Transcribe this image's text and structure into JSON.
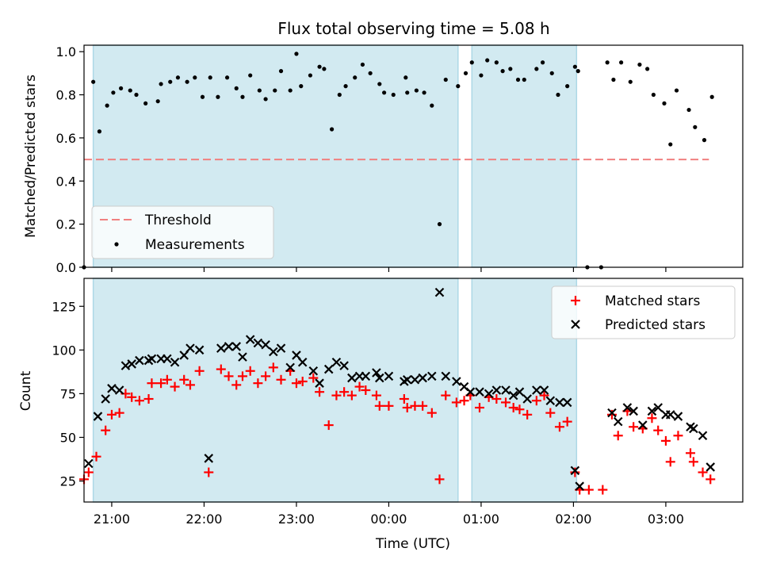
{
  "figure": {
    "title": "Flux total observing time = 5.08 h",
    "xlabel": "Time (UTC)"
  },
  "colors": {
    "shade": "#add8e6",
    "threshold": "#f08080",
    "measurement": "#000000",
    "matched": "#ff0000",
    "predicted": "#000000"
  },
  "chart_data": [
    {
      "type": "scatter",
      "panel": "top",
      "ylabel": "Matched/Predicted stars",
      "xlim": [
        "20:42",
        "03:50"
      ],
      "ylim": [
        0.0,
        1.03
      ],
      "yticks": [
        "0.0",
        "0.2",
        "0.4",
        "0.6",
        "0.8",
        "1.0"
      ],
      "xtick_labels": [
        "21:00",
        "22:00",
        "23:00",
        "00:00",
        "01:00",
        "02:00",
        "03:00"
      ],
      "shaded_intervals": [
        [
          "20:48",
          "00:45"
        ],
        [
          "00:54",
          "02:02"
        ]
      ],
      "legend": {
        "placement": "lower left",
        "entries": [
          "Threshold",
          "Measurements"
        ]
      },
      "threshold": {
        "name": "Threshold",
        "value": 0.5,
        "x_range": [
          "20:42",
          "03:28"
        ],
        "style": "dashed"
      },
      "series": [
        {
          "name": "Measurements",
          "points": [
            [
              "20:42",
              0.0
            ],
            [
              "20:48",
              0.86
            ],
            [
              "20:52",
              0.63
            ],
            [
              "20:57",
              0.75
            ],
            [
              "21:01",
              0.81
            ],
            [
              "21:06",
              0.83
            ],
            [
              "21:12",
              0.82
            ],
            [
              "21:16",
              0.8
            ],
            [
              "21:22",
              0.76
            ],
            [
              "21:30",
              0.77
            ],
            [
              "21:32",
              0.85
            ],
            [
              "21:38",
              0.86
            ],
            [
              "21:43",
              0.88
            ],
            [
              "21:49",
              0.86
            ],
            [
              "21:54",
              0.88
            ],
            [
              "21:59",
              0.79
            ],
            [
              "22:04",
              0.88
            ],
            [
              "22:09",
              0.79
            ],
            [
              "22:15",
              0.88
            ],
            [
              "22:21",
              0.83
            ],
            [
              "22:25",
              0.79
            ],
            [
              "22:30",
              0.89
            ],
            [
              "22:36",
              0.82
            ],
            [
              "22:40",
              0.78
            ],
            [
              "22:46",
              0.82
            ],
            [
              "22:50",
              0.91
            ],
            [
              "22:56",
              0.82
            ],
            [
              "23:00",
              0.99
            ],
            [
              "23:03",
              0.84
            ],
            [
              "23:09",
              0.89
            ],
            [
              "23:15",
              0.93
            ],
            [
              "23:18",
              0.92
            ],
            [
              "23:23",
              0.64
            ],
            [
              "23:28",
              0.8
            ],
            [
              "23:32",
              0.84
            ],
            [
              "23:38",
              0.88
            ],
            [
              "23:43",
              0.94
            ],
            [
              "23:48",
              0.9
            ],
            [
              "23:54",
              0.85
            ],
            [
              "23:57",
              0.81
            ],
            [
              "00:03",
              0.8
            ],
            [
              "00:11",
              0.88
            ],
            [
              "00:12",
              0.81
            ],
            [
              "00:18",
              0.82
            ],
            [
              "00:23",
              0.81
            ],
            [
              "00:28",
              0.75
            ],
            [
              "00:33",
              0.2
            ],
            [
              "00:37",
              0.87
            ],
            [
              "00:45",
              0.84
            ],
            [
              "00:50",
              0.9
            ],
            [
              "00:54",
              0.95
            ],
            [
              "01:00",
              0.89
            ],
            [
              "01:04",
              0.96
            ],
            [
              "01:10",
              0.95
            ],
            [
              "01:14",
              0.91
            ],
            [
              "01:19",
              0.92
            ],
            [
              "01:24",
              0.87
            ],
            [
              "01:28",
              0.87
            ],
            [
              "01:36",
              0.92
            ],
            [
              "01:40",
              0.95
            ],
            [
              "01:46",
              0.9
            ],
            [
              "01:50",
              0.8
            ],
            [
              "01:56",
              0.84
            ],
            [
              "02:01",
              0.93
            ],
            [
              "02:03",
              0.91
            ],
            [
              "02:09",
              0.0
            ],
            [
              "02:18",
              0.0
            ],
            [
              "02:22",
              0.95
            ],
            [
              "02:26",
              0.87
            ],
            [
              "02:31",
              0.95
            ],
            [
              "02:37",
              0.86
            ],
            [
              "02:43",
              0.94
            ],
            [
              "02:48",
              0.92
            ],
            [
              "02:52",
              0.8
            ],
            [
              "02:59",
              0.76
            ],
            [
              "03:03",
              0.57
            ],
            [
              "03:07",
              0.82
            ],
            [
              "03:15",
              0.73
            ],
            [
              "03:19",
              0.65
            ],
            [
              "03:25",
              0.59
            ],
            [
              "03:30",
              0.79
            ]
          ]
        }
      ]
    },
    {
      "type": "scatter",
      "panel": "bottom",
      "ylabel": "Count",
      "xlabel": "Time (UTC)",
      "xlim": [
        "20:42",
        "03:50"
      ],
      "ylim": [
        13,
        141
      ],
      "yticks": [
        "25",
        "50",
        "75",
        "100",
        "125"
      ],
      "xtick_labels": [
        "21:00",
        "22:00",
        "23:00",
        "00:00",
        "01:00",
        "02:00",
        "03:00"
      ],
      "shaded_intervals": [
        [
          "20:48",
          "00:45"
        ],
        [
          "00:54",
          "02:02"
        ]
      ],
      "legend": {
        "placement": "upper right",
        "entries": [
          "Matched stars",
          "Predicted stars"
        ]
      },
      "series": [
        {
          "name": "Matched stars",
          "marker": "plus",
          "points": [
            [
              "20:42",
              26
            ],
            [
              "20:45",
              30
            ],
            [
              "20:50",
              39
            ],
            [
              "20:56",
              54
            ],
            [
              "21:00",
              63
            ],
            [
              "21:05",
              64
            ],
            [
              "21:09",
              75
            ],
            [
              "21:13",
              73
            ],
            [
              "21:18",
              71
            ],
            [
              "21:24",
              72
            ],
            [
              "21:26",
              81
            ],
            [
              "21:32",
              81
            ],
            [
              "21:36",
              83
            ],
            [
              "21:41",
              79
            ],
            [
              "21:47",
              83
            ],
            [
              "21:51",
              80
            ],
            [
              "21:57",
              88
            ],
            [
              "22:03",
              30
            ],
            [
              "22:11",
              89
            ],
            [
              "22:16",
              85
            ],
            [
              "22:21",
              80
            ],
            [
              "22:25",
              85
            ],
            [
              "22:30",
              88
            ],
            [
              "22:35",
              81
            ],
            [
              "22:40",
              85
            ],
            [
              "22:45",
              90
            ],
            [
              "22:50",
              83
            ],
            [
              "22:56",
              88
            ],
            [
              "23:00",
              81
            ],
            [
              "23:04",
              82
            ],
            [
              "23:11",
              84
            ],
            [
              "23:15",
              76
            ],
            [
              "23:21",
              57
            ],
            [
              "23:26",
              74
            ],
            [
              "23:31",
              76
            ],
            [
              "23:36",
              74
            ],
            [
              "23:41",
              79
            ],
            [
              "23:45",
              77
            ],
            [
              "23:52",
              74
            ],
            [
              "23:54",
              68
            ],
            [
              "24:00",
              68
            ],
            [
              "24:10",
              72
            ],
            [
              "24:12",
              67
            ],
            [
              "24:17",
              68
            ],
            [
              "24:22",
              68
            ],
            [
              "24:28",
              64
            ],
            [
              "24:33",
              26
            ],
            [
              "24:37",
              74
            ],
            [
              "24:44",
              70
            ],
            [
              "24:49",
              71
            ],
            [
              "24:53",
              74
            ],
            [
              "24:59",
              67
            ],
            [
              "25:05",
              73
            ],
            [
              "25:10",
              72
            ],
            [
              "25:16",
              70
            ],
            [
              "25:21",
              67
            ],
            [
              "25:25",
              66
            ],
            [
              "25:30",
              63
            ],
            [
              "25:36",
              71
            ],
            [
              "25:41",
              74
            ],
            [
              "25:45",
              64
            ],
            [
              "25:51",
              56
            ],
            [
              "25:56",
              59
            ],
            [
              "26:01",
              30
            ],
            [
              "26:04",
              20
            ],
            [
              "26:10",
              20
            ],
            [
              "26:19",
              20
            ],
            [
              "26:25",
              63
            ],
            [
              "26:29",
              51
            ],
            [
              "26:35",
              65
            ],
            [
              "26:39",
              56
            ],
            [
              "26:45",
              55
            ],
            [
              "26:51",
              61
            ],
            [
              "26:55",
              54
            ],
            [
              "27:00",
              48
            ],
            [
              "27:03",
              36
            ],
            [
              "27:08",
              51
            ],
            [
              "27:16",
              41
            ],
            [
              "27:18",
              36
            ],
            [
              "27:24",
              30
            ],
            [
              "27:29",
              26
            ]
          ]
        },
        {
          "name": "Predicted stars",
          "marker": "x",
          "points": [
            [
              "20:45",
              35
            ],
            [
              "20:51",
              62
            ],
            [
              "20:56",
              72
            ],
            [
              "21:00",
              78
            ],
            [
              "21:05",
              77
            ],
            [
              "21:09",
              91
            ],
            [
              "21:13",
              92
            ],
            [
              "21:18",
              94
            ],
            [
              "21:24",
              94
            ],
            [
              "21:26",
              95
            ],
            [
              "21:32",
              95
            ],
            [
              "21:36",
              95
            ],
            [
              "21:41",
              93
            ],
            [
              "21:47",
              97
            ],
            [
              "21:51",
              101
            ],
            [
              "21:57",
              100
            ],
            [
              "22:03",
              38
            ],
            [
              "22:11",
              101
            ],
            [
              "22:16",
              102
            ],
            [
              "22:21",
              102
            ],
            [
              "22:25",
              96
            ],
            [
              "22:30",
              106
            ],
            [
              "22:35",
              104
            ],
            [
              "22:40",
              103
            ],
            [
              "22:45",
              99
            ],
            [
              "22:50",
              101
            ],
            [
              "22:56",
              90
            ],
            [
              "23:00",
              97
            ],
            [
              "23:04",
              93
            ],
            [
              "23:11",
              88
            ],
            [
              "23:15",
              81
            ],
            [
              "23:21",
              89
            ],
            [
              "23:26",
              93
            ],
            [
              "23:31",
              91
            ],
            [
              "23:36",
              84
            ],
            [
              "23:41",
              85
            ],
            [
              "23:45",
              85
            ],
            [
              "23:52",
              87
            ],
            [
              "23:54",
              84
            ],
            [
              "24:00",
              85
            ],
            [
              "24:10",
              82
            ],
            [
              "24:12",
              83
            ],
            [
              "24:17",
              83
            ],
            [
              "24:22",
              84
            ],
            [
              "24:28",
              85
            ],
            [
              "24:33",
              133
            ],
            [
              "24:37",
              85
            ],
            [
              "24:44",
              82
            ],
            [
              "24:49",
              79
            ],
            [
              "24:53",
              76
            ],
            [
              "24:59",
              76
            ],
            [
              "25:05",
              75
            ],
            [
              "25:10",
              77
            ],
            [
              "25:16",
              77
            ],
            [
              "25:21",
              74
            ],
            [
              "25:25",
              76
            ],
            [
              "25:30",
              72
            ],
            [
              "25:36",
              77
            ],
            [
              "25:41",
              77
            ],
            [
              "25:45",
              71
            ],
            [
              "25:51",
              70
            ],
            [
              "25:56",
              70
            ],
            [
              "26:01",
              31
            ],
            [
              "26:04",
              22
            ],
            [
              "26:25",
              64
            ],
            [
              "26:29",
              59
            ],
            [
              "26:35",
              67
            ],
            [
              "26:39",
              65
            ],
            [
              "26:45",
              57
            ],
            [
              "26:51",
              65
            ],
            [
              "26:55",
              67
            ],
            [
              "27:00",
              63
            ],
            [
              "27:03",
              63
            ],
            [
              "27:08",
              62
            ],
            [
              "27:16",
              56
            ],
            [
              "27:18",
              55
            ],
            [
              "27:24",
              51
            ],
            [
              "27:29",
              33
            ]
          ]
        }
      ]
    }
  ]
}
